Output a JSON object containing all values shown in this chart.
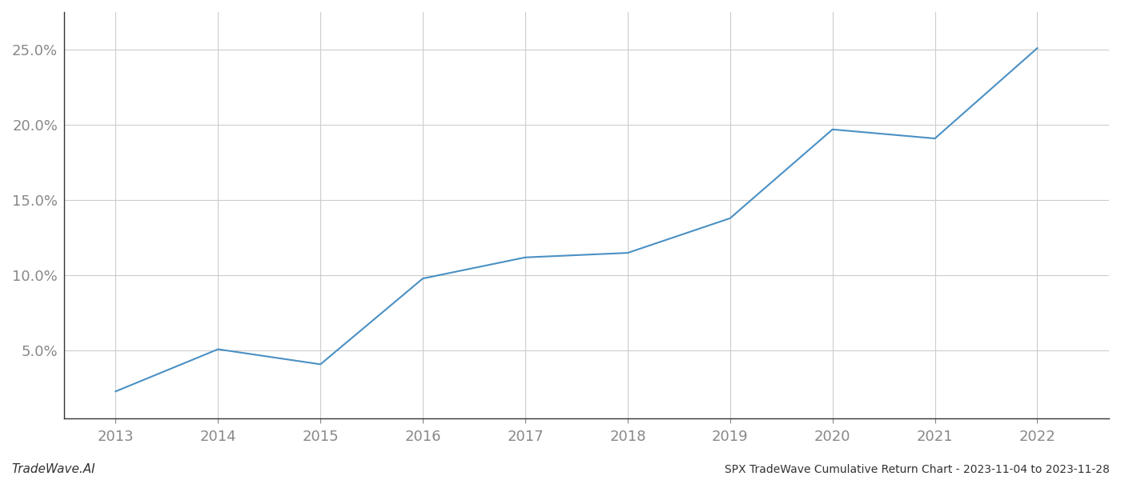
{
  "x_values": [
    2013,
    2014,
    2015,
    2016,
    2017,
    2018,
    2019,
    2020,
    2021,
    2022
  ],
  "y_values": [
    2.3,
    5.1,
    4.1,
    9.8,
    11.2,
    11.5,
    13.8,
    19.7,
    19.1,
    25.1
  ],
  "line_color": "#4a90c4",
  "line_width": 1.5,
  "title": "SPX TradeWave Cumulative Return Chart - 2023-11-04 to 2023-11-28",
  "watermark": "TradeWave.AI",
  "xlim": [
    2012.5,
    2022.7
  ],
  "ylim": [
    0.5,
    27.5
  ],
  "yticks": [
    5,
    10,
    15,
    20,
    25
  ],
  "ytick_labels": [
    "5.0%",
    "10.0%",
    "15.0%",
    "20.0%",
    "25.0%"
  ],
  "xticks": [
    2013,
    2014,
    2015,
    2016,
    2017,
    2018,
    2019,
    2020,
    2021,
    2022
  ],
  "background_color": "#ffffff",
  "grid_color": "#cccccc",
  "tick_color": "#888888",
  "spine_color": "#333333",
  "title_fontsize": 10,
  "watermark_fontsize": 11,
  "tick_fontsize": 13
}
